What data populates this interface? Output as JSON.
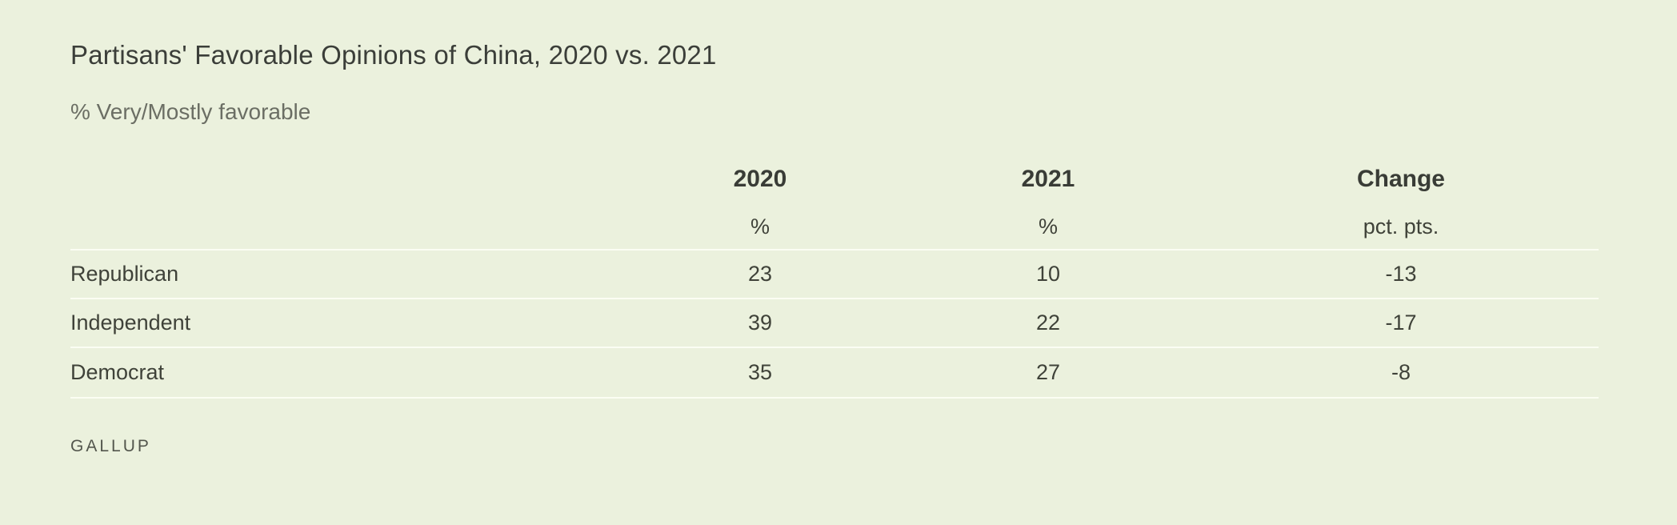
{
  "page": {
    "background_color": "#ebf1dd",
    "separator_color": "#fbfdf3",
    "text_color": "#3f4239",
    "subtitle_color": "#6b6e64"
  },
  "header": {
    "title": "Partisans' Favorable Opinions of China, 2020 vs. 2021",
    "subtitle": "% Very/Mostly favorable"
  },
  "table": {
    "columns": [
      {
        "label": "2020",
        "unit": "%"
      },
      {
        "label": "2021",
        "unit": "%"
      },
      {
        "label": "Change",
        "unit": "pct. pts."
      }
    ],
    "rows": [
      {
        "label": "Republican",
        "y2020": "23",
        "y2021": "10",
        "change": "-13"
      },
      {
        "label": "Independent",
        "y2020": "39",
        "y2021": "22",
        "change": "-17"
      },
      {
        "label": "Democrat",
        "y2020": "35",
        "y2021": "27",
        "change": "-8"
      }
    ]
  },
  "footer": {
    "brand": "GALLUP"
  },
  "chart_data": {
    "type": "table",
    "title": "Partisans' Favorable Opinions of China, 2020 vs. 2021",
    "subtitle": "% Very/Mostly favorable",
    "categories": [
      "Republican",
      "Independent",
      "Democrat"
    ],
    "series": [
      {
        "name": "2020",
        "unit": "%",
        "values": [
          23,
          39,
          35
        ]
      },
      {
        "name": "2021",
        "unit": "%",
        "values": [
          10,
          22,
          27
        ]
      },
      {
        "name": "Change",
        "unit": "pct. pts.",
        "values": [
          -13,
          -17,
          -8
        ]
      }
    ],
    "source": "GALLUP",
    "layout": {
      "grid": "off",
      "legend": "none",
      "row_separators": true
    }
  }
}
